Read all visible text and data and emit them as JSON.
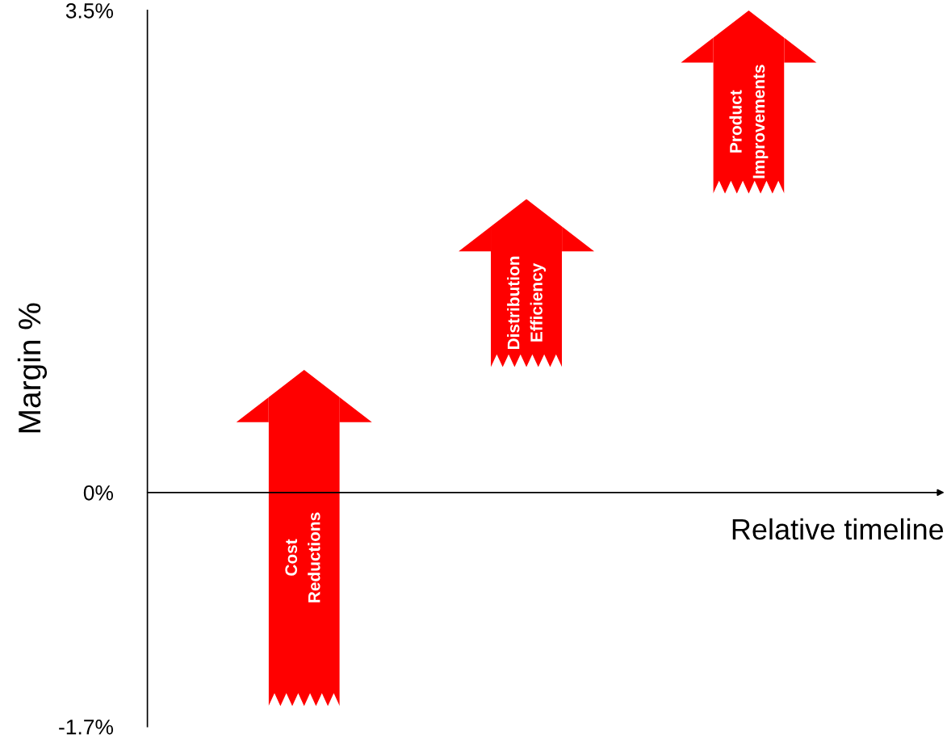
{
  "chart_data": {
    "type": "bar",
    "ylabel": "Margin %",
    "categories": [
      null,
      null,
      null
    ],
    "annotations": [
      "Cost\nReductions",
      "Distribution\nEfficiency",
      "Product\nImprovements",
      "Relative timeline"
    ],
    "base": [
      -1.55,
      0.91,
      2.17
    ],
    "values": [
      2.44,
      1.22,
      1.33
    ],
    "color": "#ff0000",
    "ylim": [
      -1.7,
      3.5
    ],
    "yticks": [
      {
        "value": 3.5,
        "label": "3.5%"
      },
      {
        "value": 0,
        "label": "0%"
      },
      {
        "value": -1.7,
        "label": "-1.7%"
      }
    ],
    "tick_labels": "y",
    "grid": false
  }
}
